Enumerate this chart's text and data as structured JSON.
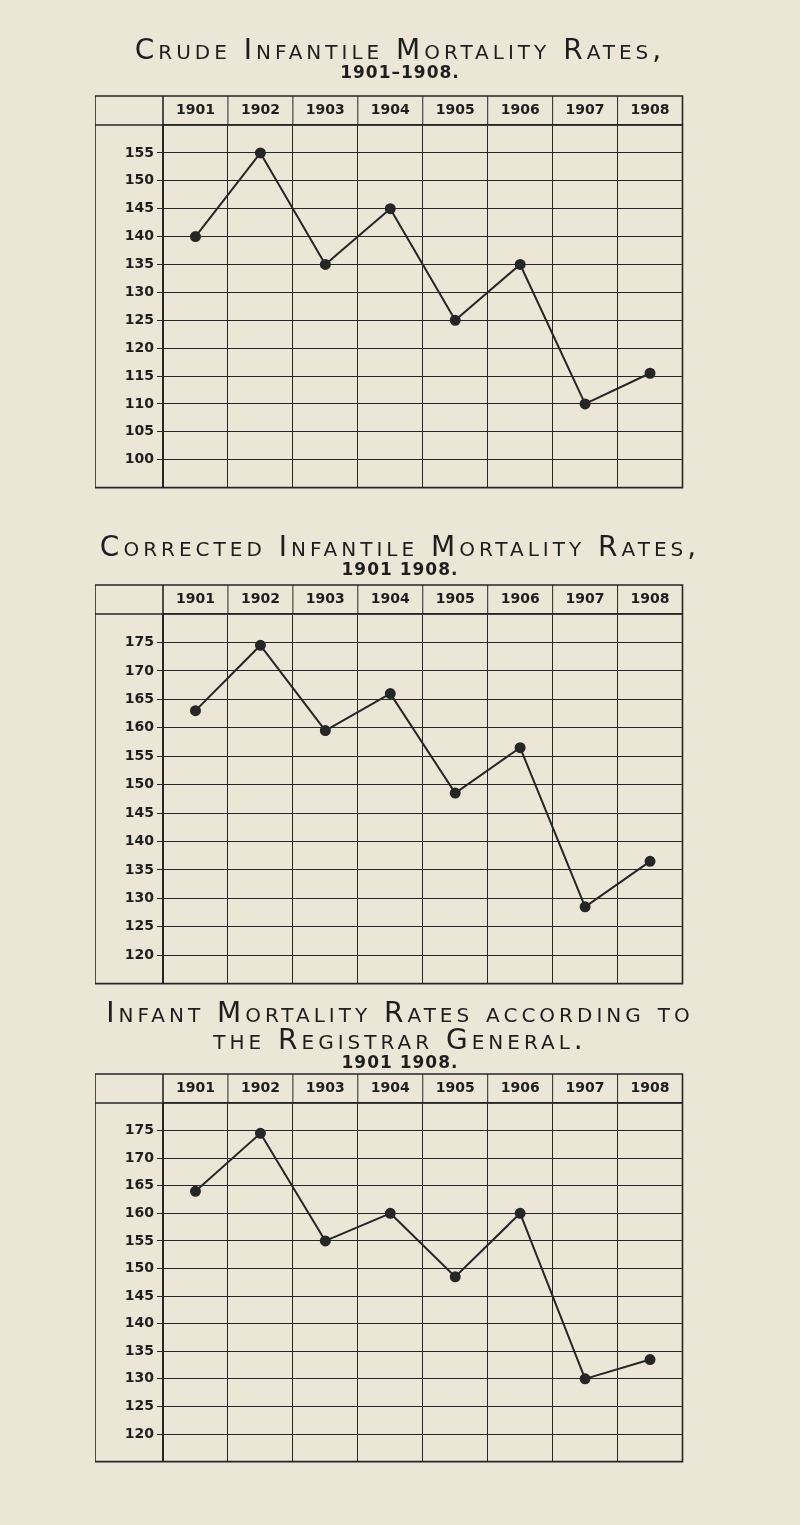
{
  "chart_data": [
    {
      "type": "line",
      "title": "Crude Infantile Mortality Rates,",
      "subtitle": "1901–1908.",
      "categories": [
        "1901",
        "1902",
        "1903",
        "1904",
        "1905",
        "1906",
        "1907",
        "1908"
      ],
      "series": [
        {
          "color": "#262626",
          "values": [
            140,
            155,
            135,
            145,
            125,
            135,
            110,
            115.5
          ]
        }
      ],
      "ylim": [
        95,
        160
      ],
      "yticks": [
        100,
        105,
        110,
        115,
        120,
        125,
        130,
        135,
        140,
        145,
        150,
        155
      ],
      "grid": true,
      "marker": "circle",
      "line_style": "solid"
    },
    {
      "type": "line",
      "title": "Corrected Infantile Mortality Rates,",
      "subtitle": "1901 1908.",
      "categories": [
        "1901",
        "1902",
        "1903",
        "1904",
        "1905",
        "1906",
        "1907",
        "1908"
      ],
      "series": [
        {
          "color": "#262626",
          "values": [
            163,
            174.5,
            159.5,
            166,
            148.5,
            156.5,
            128.5,
            136.5
          ]
        }
      ],
      "ylim": [
        115,
        180
      ],
      "yticks": [
        120,
        125,
        130,
        135,
        140,
        145,
        150,
        155,
        160,
        165,
        170,
        175
      ],
      "grid": true,
      "marker": "circle",
      "line_style": "solid"
    },
    {
      "type": "line",
      "title": "Infant Mortality Rates according to the Registrar General.",
      "subtitle": "1901 1908.",
      "categories": [
        "1901",
        "1902",
        "1903",
        "1904",
        "1905",
        "1906",
        "1907",
        "1908"
      ],
      "series": [
        {
          "color": "#262626",
          "values": [
            164,
            174.5,
            155,
            160,
            148.5,
            160,
            130,
            133.5
          ]
        }
      ],
      "ylim": [
        115,
        180
      ],
      "yticks": [
        120,
        125,
        130,
        135,
        140,
        145,
        150,
        155,
        160,
        165,
        170,
        175
      ],
      "grid": true,
      "marker": "circle",
      "line_style": "solid"
    }
  ]
}
